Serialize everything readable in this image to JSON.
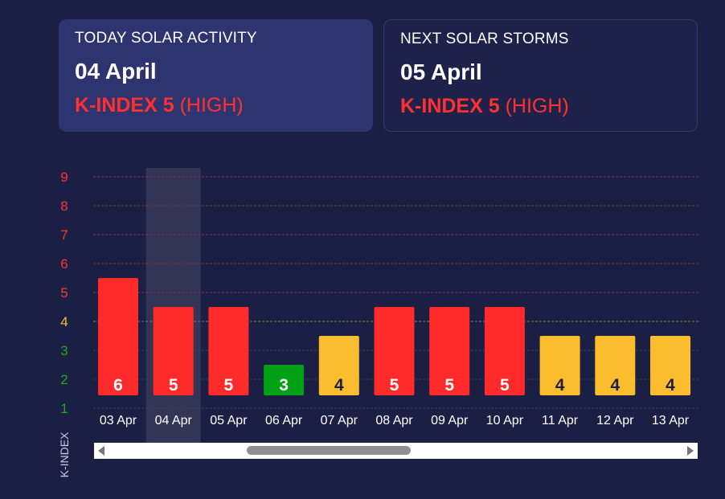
{
  "today_card": {
    "title": "TODAY SOLAR ACTIVITY",
    "date": "04 April",
    "k_label": "K-INDEX 5",
    "level": "(HIGH)"
  },
  "next_card": {
    "title": "NEXT SOLAR STORMS",
    "date": "05 April",
    "k_label": "K-INDEX 5",
    "level": "(HIGH)"
  },
  "chart_data": {
    "type": "bar",
    "ylabel": "K-INDEX",
    "ylim": [
      1,
      9
    ],
    "yticks": [
      {
        "value": 9,
        "color": "#ff3333"
      },
      {
        "value": 8,
        "color": "#ff3333"
      },
      {
        "value": 7,
        "color": "#ff3333"
      },
      {
        "value": 6,
        "color": "#ff3333"
      },
      {
        "value": 5,
        "color": "#ff3333"
      },
      {
        "value": 4,
        "color": "#fbbd2d"
      },
      {
        "value": 3,
        "color": "#1ea81e"
      },
      {
        "value": 2,
        "color": "#1ea81e"
      },
      {
        "value": 1,
        "color": "#1ea81e"
      }
    ],
    "categories": [
      "03 Apr",
      "04 Apr",
      "05 Apr",
      "06 Apr",
      "07 Apr",
      "08 Apr",
      "09 Apr",
      "10 Apr",
      "11 Apr",
      "12 Apr",
      "13 Apr"
    ],
    "values": [
      6,
      5,
      5,
      3,
      4,
      5,
      5,
      5,
      4,
      4,
      4
    ],
    "highlighted_category": "04 Apr",
    "colors": {
      "high": "#ff2a2a",
      "moderate": "#fbbd2d",
      "low": "#00a114",
      "grid_red": "#8a3040",
      "grid_yellow": "#8a7a3a",
      "grid_green": "#2e4a4a"
    }
  }
}
